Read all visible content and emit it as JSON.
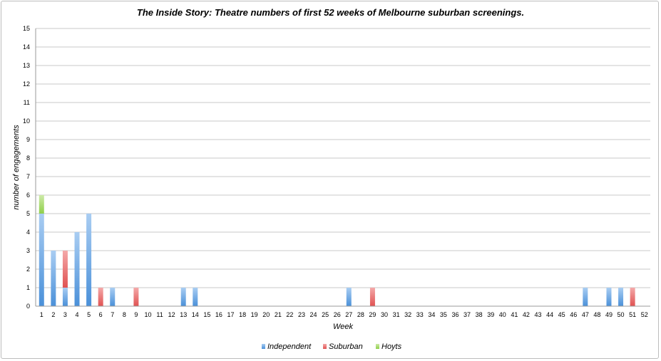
{
  "chart_data": {
    "type": "bar",
    "stacked": true,
    "title": "The Inside Story: Theatre numbers of first 52 weeks of Melbourne suburban screenings.",
    "xlabel": "Week",
    "ylabel": "number of engagements",
    "ylim": [
      0,
      15
    ],
    "yticks": [
      0,
      1,
      2,
      3,
      4,
      5,
      6,
      7,
      8,
      9,
      10,
      11,
      12,
      13,
      14,
      15
    ],
    "grid": true,
    "legend_position": "bottom",
    "categories": [
      "1",
      "2",
      "3",
      "4",
      "5",
      "6",
      "7",
      "8",
      "9",
      "10",
      "11",
      "12",
      "13",
      "14",
      "15",
      "16",
      "17",
      "18",
      "19",
      "20",
      "21",
      "22",
      "23",
      "24",
      "25",
      "26",
      "27",
      "28",
      "29",
      "30",
      "31",
      "32",
      "33",
      "34",
      "35",
      "36",
      "37",
      "38",
      "39",
      "40",
      "41",
      "42",
      "43",
      "44",
      "45",
      "46",
      "47",
      "48",
      "49",
      "50",
      "51",
      "52"
    ],
    "series": [
      {
        "name": "Independent",
        "color": "#4a90d9",
        "light": "#a9cdf2",
        "values": [
          5,
          3,
          1,
          4,
          5,
          0,
          1,
          0,
          0,
          0,
          0,
          0,
          1,
          1,
          0,
          0,
          0,
          0,
          0,
          0,
          0,
          0,
          0,
          0,
          0,
          0,
          1,
          0,
          0,
          0,
          0,
          0,
          0,
          0,
          0,
          0,
          0,
          0,
          0,
          0,
          0,
          0,
          0,
          0,
          0,
          0,
          1,
          0,
          1,
          1,
          0,
          0
        ]
      },
      {
        "name": "Suburban",
        "color": "#e05252",
        "light": "#f4a9a9",
        "values": [
          0,
          0,
          2,
          0,
          0,
          1,
          0,
          0,
          1,
          0,
          0,
          0,
          0,
          0,
          0,
          0,
          0,
          0,
          0,
          0,
          0,
          0,
          0,
          0,
          0,
          0,
          0,
          0,
          1,
          0,
          0,
          0,
          0,
          0,
          0,
          0,
          0,
          0,
          0,
          0,
          0,
          0,
          0,
          0,
          0,
          0,
          0,
          0,
          0,
          0,
          1,
          0
        ]
      },
      {
        "name": "Hoyts",
        "color": "#8fcf4a",
        "light": "#cdeaa8",
        "values": [
          1,
          0,
          0,
          0,
          0,
          0,
          0,
          0,
          0,
          0,
          0,
          0,
          0,
          0,
          0,
          0,
          0,
          0,
          0,
          0,
          0,
          0,
          0,
          0,
          0,
          0,
          0,
          0,
          0,
          0,
          0,
          0,
          0,
          0,
          0,
          0,
          0,
          0,
          0,
          0,
          0,
          0,
          0,
          0,
          0,
          0,
          0,
          0,
          0,
          0,
          0,
          0
        ]
      }
    ]
  }
}
